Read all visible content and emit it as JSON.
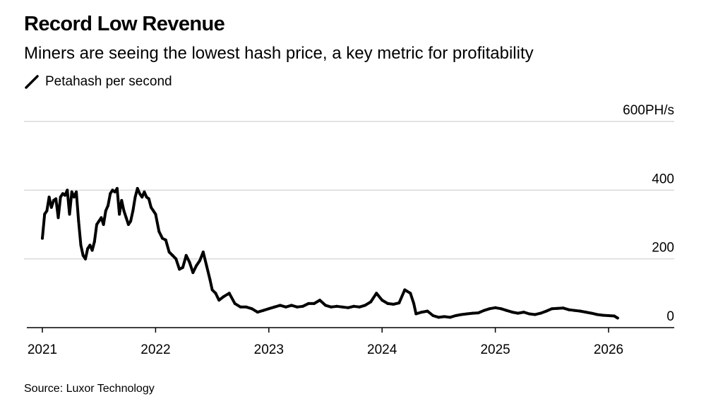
{
  "header": {
    "title": "Record Low Revenue",
    "subtitle": "Miners are seeing the lowest hash price, a key metric for profitability"
  },
  "legend": {
    "label": "Petahash per second",
    "icon": "diagonal-line-icon"
  },
  "source": "Source: Luxor Technology",
  "colors": {
    "series": "#000000",
    "gridline": "#d9d9d9",
    "axis": "#000000",
    "background": "#ffffff"
  },
  "chart_data": {
    "type": "line",
    "title": "Record Low Revenue",
    "subtitle": "Miners are seeing the lowest hash price, a key metric for profitability",
    "xlabel": "",
    "ylabel": "Petahash per second",
    "xlim": [
      2021,
      2026.6
    ],
    "ylim": [
      0,
      600
    ],
    "x_ticks": [
      2021,
      2022,
      2023,
      2024,
      2025,
      2026
    ],
    "x_tick_labels": [
      "2021",
      "2022",
      "2023",
      "2024",
      "2025",
      "2026"
    ],
    "y_ticks": [
      0,
      200,
      400,
      600
    ],
    "y_tick_labels": [
      "0",
      "200",
      "400",
      "600PH/s"
    ],
    "grid": true,
    "legend_position": "top-left",
    "series": [
      {
        "name": "Petahash per second",
        "x": [
          2021.0,
          2021.02,
          2021.04,
          2021.06,
          2021.08,
          2021.1,
          2021.12,
          2021.14,
          2021.16,
          2021.18,
          2021.2,
          2021.22,
          2021.24,
          2021.26,
          2021.28,
          2021.3,
          2021.32,
          2021.34,
          2021.36,
          2021.38,
          2021.4,
          2021.42,
          2021.44,
          2021.46,
          2021.48,
          2021.5,
          2021.52,
          2021.54,
          2021.56,
          2021.58,
          2021.6,
          2021.62,
          2021.64,
          2021.66,
          2021.68,
          2021.7,
          2021.72,
          2021.74,
          2021.76,
          2021.78,
          2021.8,
          2021.82,
          2021.84,
          2021.86,
          2021.88,
          2021.9,
          2021.92,
          2021.94,
          2021.96,
          2021.98,
          2022.0,
          2022.03,
          2022.06,
          2022.09,
          2022.12,
          2022.15,
          2022.18,
          2022.21,
          2022.24,
          2022.27,
          2022.3,
          2022.33,
          2022.36,
          2022.39,
          2022.42,
          2022.45,
          2022.48,
          2022.5,
          2022.53,
          2022.56,
          2022.6,
          2022.65,
          2022.7,
          2022.75,
          2022.8,
          2022.85,
          2022.9,
          2022.95,
          2023.0,
          2023.05,
          2023.1,
          2023.15,
          2023.2,
          2023.25,
          2023.3,
          2023.35,
          2023.4,
          2023.45,
          2023.5,
          2023.55,
          2023.6,
          2023.65,
          2023.7,
          2023.75,
          2023.8,
          2023.85,
          2023.9,
          2023.95,
          2024.0,
          2024.05,
          2024.1,
          2024.15,
          2024.2,
          2024.25,
          2024.28,
          2024.3,
          2024.35,
          2024.4,
          2024.45,
          2024.5,
          2024.55,
          2024.6,
          2024.65,
          2024.7,
          2024.75,
          2024.8,
          2024.85,
          2024.9,
          2024.95,
          2025.0,
          2025.05,
          2025.1,
          2025.15,
          2025.2,
          2025.25,
          2025.3,
          2025.35,
          2025.4,
          2025.45,
          2025.5,
          2025.55,
          2025.6,
          2025.65,
          2025.7,
          2025.75,
          2025.8,
          2025.85,
          2025.9,
          2025.95,
          2026.0,
          2026.05,
          2026.08
        ],
        "values": [
          260,
          330,
          340,
          380,
          350,
          370,
          375,
          320,
          380,
          390,
          385,
          400,
          330,
          395,
          380,
          395,
          310,
          240,
          210,
          200,
          230,
          240,
          225,
          250,
          300,
          310,
          320,
          300,
          340,
          355,
          390,
          400,
          395,
          405,
          330,
          370,
          340,
          320,
          300,
          310,
          340,
          380,
          405,
          390,
          380,
          395,
          380,
          375,
          350,
          340,
          330,
          280,
          260,
          255,
          220,
          210,
          200,
          170,
          175,
          210,
          190,
          160,
          180,
          195,
          220,
          180,
          140,
          110,
          100,
          80,
          90,
          100,
          70,
          60,
          60,
          55,
          45,
          50,
          55,
          60,
          65,
          60,
          65,
          60,
          62,
          70,
          70,
          80,
          65,
          60,
          62,
          60,
          58,
          62,
          60,
          65,
          75,
          100,
          80,
          70,
          68,
          72,
          110,
          100,
          70,
          40,
          45,
          48,
          35,
          30,
          32,
          30,
          35,
          38,
          40,
          42,
          43,
          50,
          55,
          58,
          55,
          50,
          45,
          42,
          45,
          40,
          38,
          42,
          48,
          55,
          56,
          57,
          52,
          50,
          48,
          45,
          42,
          38,
          36,
          35,
          34,
          28
        ]
      }
    ]
  }
}
